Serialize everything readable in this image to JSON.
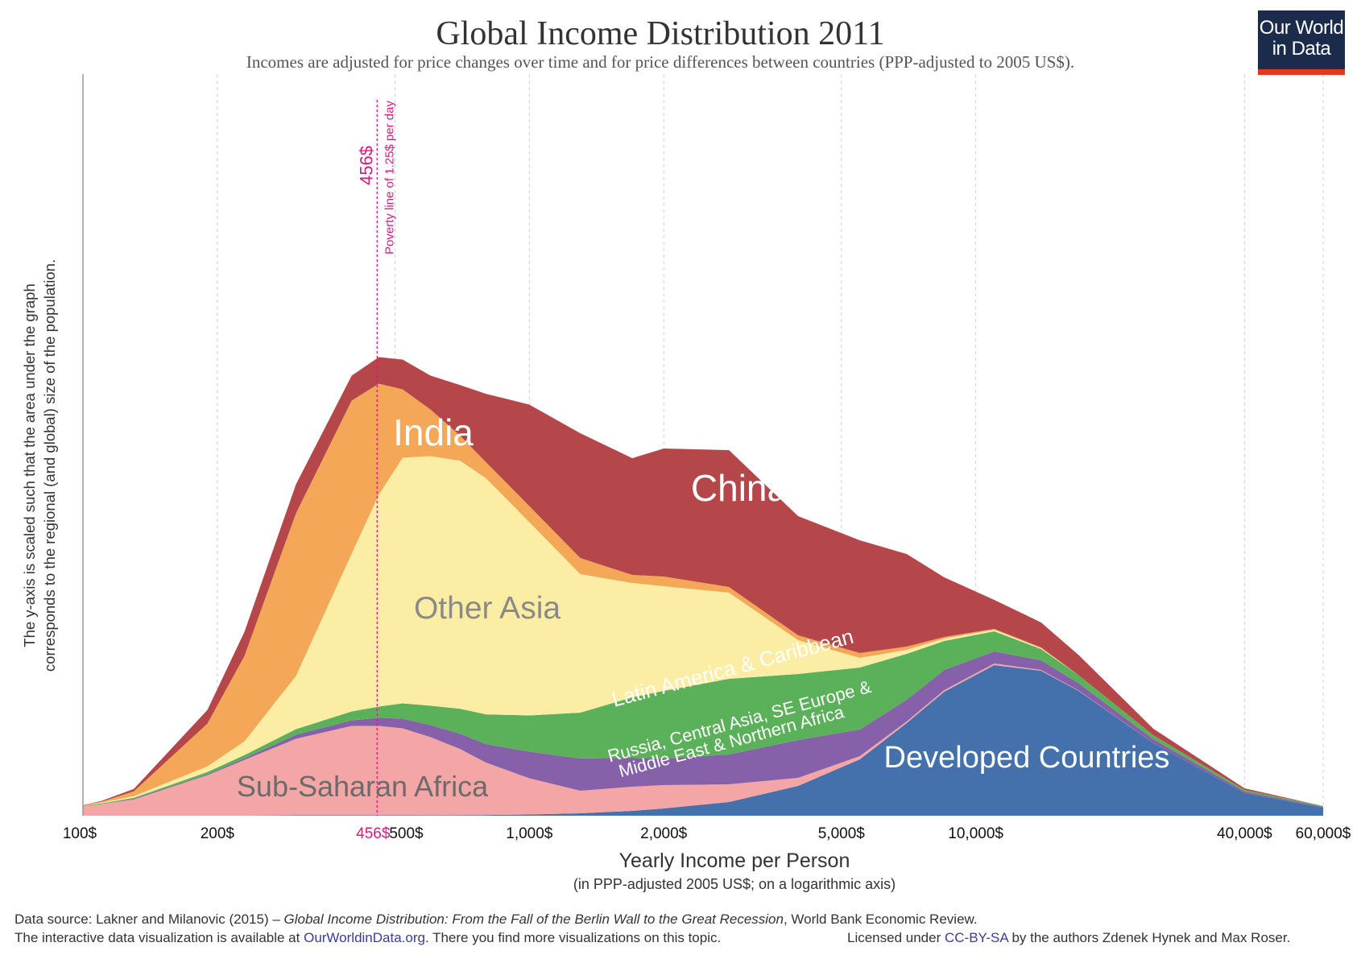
{
  "title": "Global Income Distribution 2011",
  "subtitle": "Incomes are adjusted for price changes over time and for price differences between countries (PPP-adjusted to 2005 US$).",
  "logo": {
    "line1": "Our World",
    "line2": "in Data"
  },
  "colors": {
    "developed": "#4470ac",
    "subsaharan": "#f4a6a6",
    "russia_mena": "#8660a8",
    "latam": "#5bb15a",
    "other_asia": "#fbeea4",
    "india": "#f4a857",
    "china": "#b5464a",
    "poverty": "#e0177a"
  },
  "chart_data": {
    "type": "area",
    "stacked": true,
    "x_scale": "log",
    "xlim": [
      100,
      60000
    ],
    "xlabel": "Yearly Income per Person",
    "xlabel_sub": "(in PPP-adjusted 2005 US$; on a logarithmic axis)",
    "ylabel_line1": "The y-axis is scaled such that the area under the graph",
    "ylabel_line2": "corresponds to the regional (and global) size of the population.",
    "x_ticks": [
      {
        "value": 100,
        "label": "100$"
      },
      {
        "value": 200,
        "label": "200$"
      },
      {
        "value": 500,
        "label": "500$"
      },
      {
        "value": 1000,
        "label": "1,000$"
      },
      {
        "value": 2000,
        "label": "2,000$"
      },
      {
        "value": 5000,
        "label": "5,000$"
      },
      {
        "value": 10000,
        "label": "10,000$"
      },
      {
        "value": 40000,
        "label": "40,000$"
      },
      {
        "value": 60000,
        "label": "60,000$"
      }
    ],
    "grid": true,
    "x": [
      100,
      110,
      130,
      190,
      230,
      300,
      400,
      460,
      520,
      600,
      700,
      800,
      1000,
      1300,
      1700,
      2000,
      2800,
      4000,
      5500,
      7000,
      8500,
      11000,
      14000,
      17000,
      25000,
      40000,
      60000
    ],
    "series": [
      {
        "name": "Developed Countries",
        "label": "Developed Countries",
        "values": [
          0.3,
          0.3,
          0.3,
          0.3,
          0.3,
          0.5,
          0.5,
          0.5,
          0.5,
          0.6,
          0.7,
          0.9,
          1.5,
          3,
          6,
          9,
          17,
          37,
          70,
          115,
          154,
          187,
          180,
          155,
          90,
          28,
          10
        ]
      },
      {
        "name": "Sub-Saharan Africa",
        "label": "Sub-Saharan Africa",
        "values": [
          12,
          14,
          20,
          50,
          69,
          95,
          111,
          111,
          108,
          97,
          82,
          65,
          45,
          28,
          30,
          29,
          22,
          10,
          4,
          2,
          2,
          2,
          1,
          0.5,
          0,
          0,
          0
        ]
      },
      {
        "name": "Russia, Central Asia, SE Europe & Middle East & Northern Africa",
        "label_line1": "Russia, Central Asia, SE Europe &",
        "label_line2": "Middle East & Northern Africa",
        "values": [
          0,
          0,
          1,
          1,
          2,
          5,
          7,
          10,
          12,
          15,
          19,
          23,
          33,
          40,
          36,
          33,
          37,
          47,
          33,
          27,
          25,
          15,
          12,
          9,
          5,
          2,
          1
        ]
      },
      {
        "name": "Latin America & Caribbean",
        "label": "Latin America & Caribbean",
        "values": [
          1,
          1,
          1,
          3,
          4,
          7,
          11,
          14,
          19,
          24,
          31,
          37,
          45,
          57,
          75,
          84,
          94,
          82,
          77,
          57,
          36,
          25,
          14,
          10,
          5,
          2,
          1
        ]
      },
      {
        "name": "Other Asia",
        "label": "Other Asia",
        "values": [
          0,
          1,
          2,
          7,
          17,
          66,
          196,
          263,
          305,
          310,
          308,
          293,
          240,
          172,
          142,
          130,
          107,
          42,
          12,
          5,
          3,
          2,
          1,
          0,
          0,
          0,
          0
        ]
      },
      {
        "name": "India",
        "label": "India",
        "values": [
          0,
          1,
          6,
          53,
          106,
          202,
          190,
          138,
          85,
          58,
          31,
          20,
          20,
          20,
          10,
          12,
          7,
          6,
          6,
          4,
          2,
          1,
          1,
          0,
          0,
          0,
          0
        ]
      },
      {
        "name": "China",
        "label": "China",
        "values": [
          0,
          1,
          3,
          17,
          30,
          36,
          31,
          33,
          37,
          42,
          63,
          85,
          126,
          155,
          145,
          159,
          170,
          148,
          140,
          115,
          74,
          36,
          31,
          25,
          8,
          2,
          0
        ]
      }
    ],
    "annotation": {
      "x": 456,
      "label_value": "456$",
      "label_text": "Poverty line of 1.25$ per day",
      "tick_label": "456$"
    }
  },
  "footer": {
    "source_prefix": "Data source: Lakner and Milanovic (2015) – ",
    "source_title": "Global Income Distribution: From the Fall of the Berlin Wall to the Great Recession",
    "source_suffix": ", World Bank Economic Review.",
    "interactive_prefix": "The interactive data visualization is available at ",
    "interactive_link": "OurWorldinData.org",
    "interactive_suffix": ". There you find more visualizations on this topic.",
    "license_prefix": "Licensed under ",
    "license_link": "CC-BY-SA",
    "license_suffix": " by the authors Zdenek Hynek and Max Roser."
  }
}
